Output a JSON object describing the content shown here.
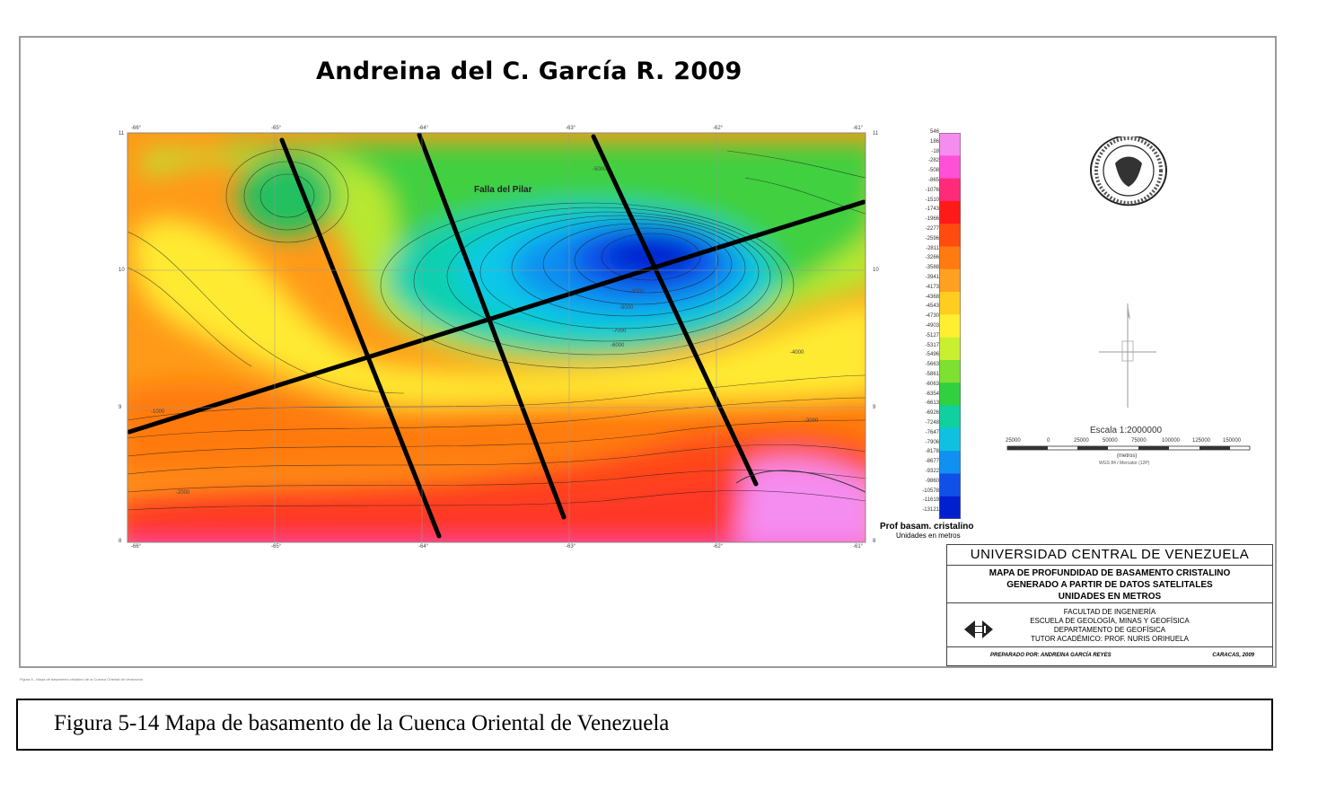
{
  "author_title": "Andreina del C. García R. 2009",
  "map": {
    "feature_label": "Falla del Pilar",
    "lon_ticks": [
      "-66°",
      "-65°",
      "-64°",
      "-63°",
      "-62°",
      "-61°"
    ],
    "lat_ticks_left": [
      "11",
      "10",
      "9",
      "8"
    ],
    "lat_ticks_right": [
      "11",
      "10",
      "9",
      "8"
    ],
    "contour_labels": [
      "-5000",
      "-6000",
      "-4000",
      "-3000",
      "-2000",
      "-1000",
      "-7000",
      "-8000",
      "-9000"
    ]
  },
  "colorbar": {
    "ticks": [
      "546",
      "186",
      "-18",
      "-282",
      "-508",
      "-865",
      "-1076",
      "-1510",
      "-1743",
      "-1966",
      "-2277",
      "-2596",
      "-2811",
      "-3266",
      "-3588",
      "-3941",
      "-4173",
      "-4368",
      "-4543",
      "-4730",
      "-4903",
      "-5127",
      "-5317",
      "-5496",
      "-5663",
      "-5861",
      "-6063",
      "-6354",
      "-6613",
      "-6926",
      "-7248",
      "-7647",
      "-7906",
      "-8178",
      "-8677",
      "-9322",
      "-9860",
      "-10578",
      "-11619",
      "-13121"
    ],
    "title": "Prof basam. cristalino",
    "units": "Unidades en metros",
    "colors": [
      "#f58cf0",
      "#ff50d8",
      "#ff2a7a",
      "#ff1a1a",
      "#ff4a10",
      "#ff7a10",
      "#ffa020",
      "#ffcc20",
      "#ffef30",
      "#c8ef30",
      "#7ee030",
      "#30d040",
      "#10d0a0",
      "#10c0e0",
      "#1090f0",
      "#1050e8",
      "#0020d0"
    ]
  },
  "scale": {
    "title": "Escala 1:2000000",
    "labels": [
      "25000",
      "0",
      "25000",
      "50000",
      "75000",
      "100000",
      "125000",
      "150000"
    ],
    "unit": "(metros)",
    "crs": "WGS 84 / Mercator (12P)"
  },
  "titlebox": {
    "university": "UNIVERSIDAD CENTRAL DE VENEZUELA",
    "map_title_lines": [
      "MAPA DE PROFUNDIDAD DE BASAMENTO CRISTALINO",
      "GENERADO A PARTIR DE DATOS SATELITALES",
      "UNIDADES EN METROS"
    ],
    "faculty_lines": [
      "FACULTAD DE INGENIERÍA",
      "ESCUELA DE GEOLOGÍA, MINAS Y GEOFÍSICA",
      "DEPARTAMENTO DE GEOFÍSICA",
      "TUTOR ACADÉMICO: PROF. NURIS ORIHUELA"
    ],
    "prepared_by": "PREPARADO POR: ANDREINA GARCÍA REYES",
    "place_date": "CARACAS, 2009"
  },
  "tiny_note": "Figura 5 - Mapa de basamento cristalino de la Cuenca Oriental de Venezuela",
  "caption": "Figura 5-14  Mapa de basamento de la Cuenca Oriental de Venezuela"
}
